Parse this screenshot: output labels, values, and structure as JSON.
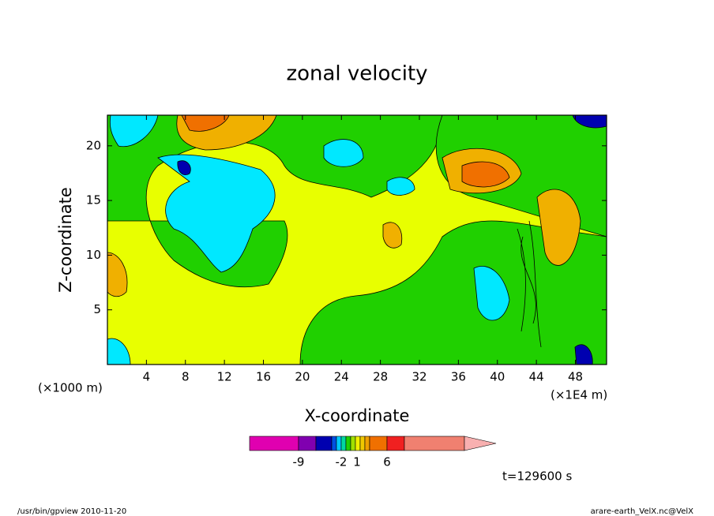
{
  "chart_data": {
    "type": "contour",
    "title": "zonal velocity",
    "xlabel": "X-coordinate",
    "ylabel": "Z-coordinate",
    "x_unit_left": "(×1000 m)",
    "x_unit_right": "(×1E4 m)",
    "xlim": [
      0,
      51.2
    ],
    "ylim": [
      0,
      22.8
    ],
    "xticks": [
      4,
      8,
      12,
      16,
      20,
      24,
      28,
      32,
      36,
      40,
      44,
      48
    ],
    "yticks": [
      5,
      10,
      15,
      20
    ],
    "colorbar": {
      "colors": [
        "#e000b0",
        "#8000b0",
        "#0000b0",
        "#0050e0",
        "#00c8ff",
        "#00d8a0",
        "#20d000",
        "#a0e000",
        "#f0f000",
        "#f0c800",
        "#f0a000",
        "#f07000",
        "#f02020",
        "#f08070",
        "#f8b0b0"
      ],
      "ticks": [
        -9,
        -2,
        1,
        6
      ]
    },
    "annotation": "t=129600 s"
  },
  "footer": {
    "left": "/usr/bin/gpview  2010-11-20",
    "right": "arare-earth_VelX.nc@VelX"
  }
}
